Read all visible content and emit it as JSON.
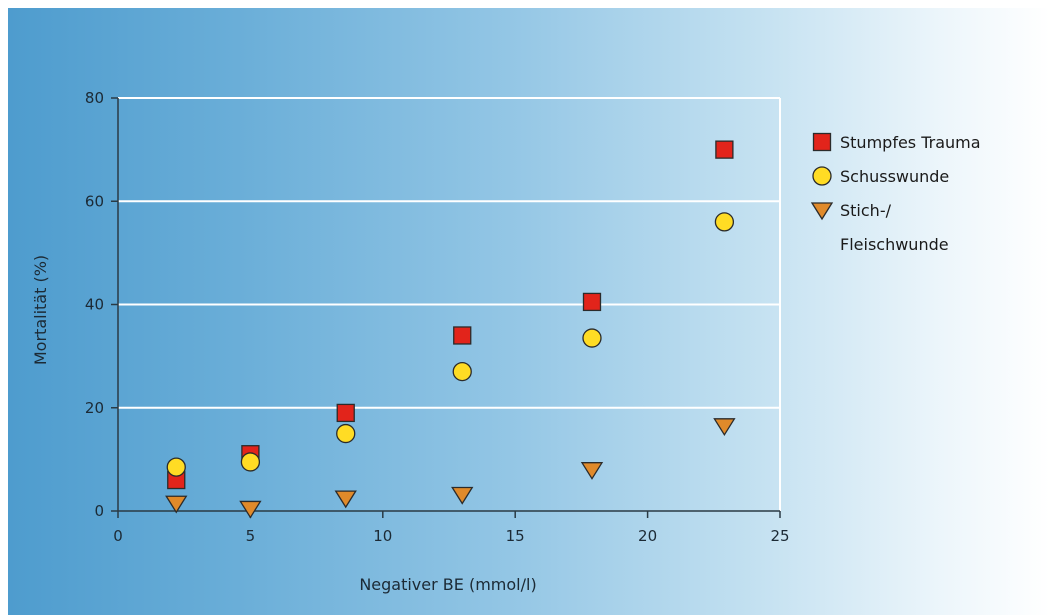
{
  "colors": {
    "square": "#e2241b",
    "circle": "#ffdc24",
    "triangle": "#e08a2a",
    "marker_stroke": "#2b2b2b",
    "grid": "#ffffff",
    "axis": "#2a3a44"
  },
  "chart_data": {
    "type": "scatter",
    "title": "",
    "xlabel": "Negativer BE (mmol/l)",
    "ylabel": "Mortalität (%)",
    "xlim": [
      0,
      25
    ],
    "ylim": [
      0,
      80
    ],
    "xticks": [
      "0",
      "5",
      "10",
      "15",
      "20",
      "25"
    ],
    "yticks": [
      "0",
      "20",
      "40",
      "60",
      "80"
    ],
    "grid": "horizontal",
    "legend_position": "right",
    "series": [
      {
        "name": "Stumpfes Trauma",
        "marker": "square",
        "x": [
          2.2,
          5.0,
          8.6,
          13.0,
          17.9,
          22.9
        ],
        "y": [
          6,
          11,
          19,
          34,
          40.5,
          70
        ]
      },
      {
        "name": "Schusswunde",
        "marker": "circle",
        "x": [
          2.2,
          5.0,
          8.6,
          13.0,
          17.9,
          22.9
        ],
        "y": [
          8.5,
          9.5,
          15,
          27,
          33.5,
          56
        ]
      },
      {
        "name": "Stich-/ Fleischwunde",
        "name_lines": [
          "Stich-/",
          "Fleischwunde"
        ],
        "marker": "triangle",
        "x": [
          2.2,
          5.0,
          8.6,
          13.0,
          17.9,
          22.9
        ],
        "y": [
          1.5,
          0.5,
          2.5,
          3.2,
          8,
          16.5
        ]
      }
    ]
  }
}
